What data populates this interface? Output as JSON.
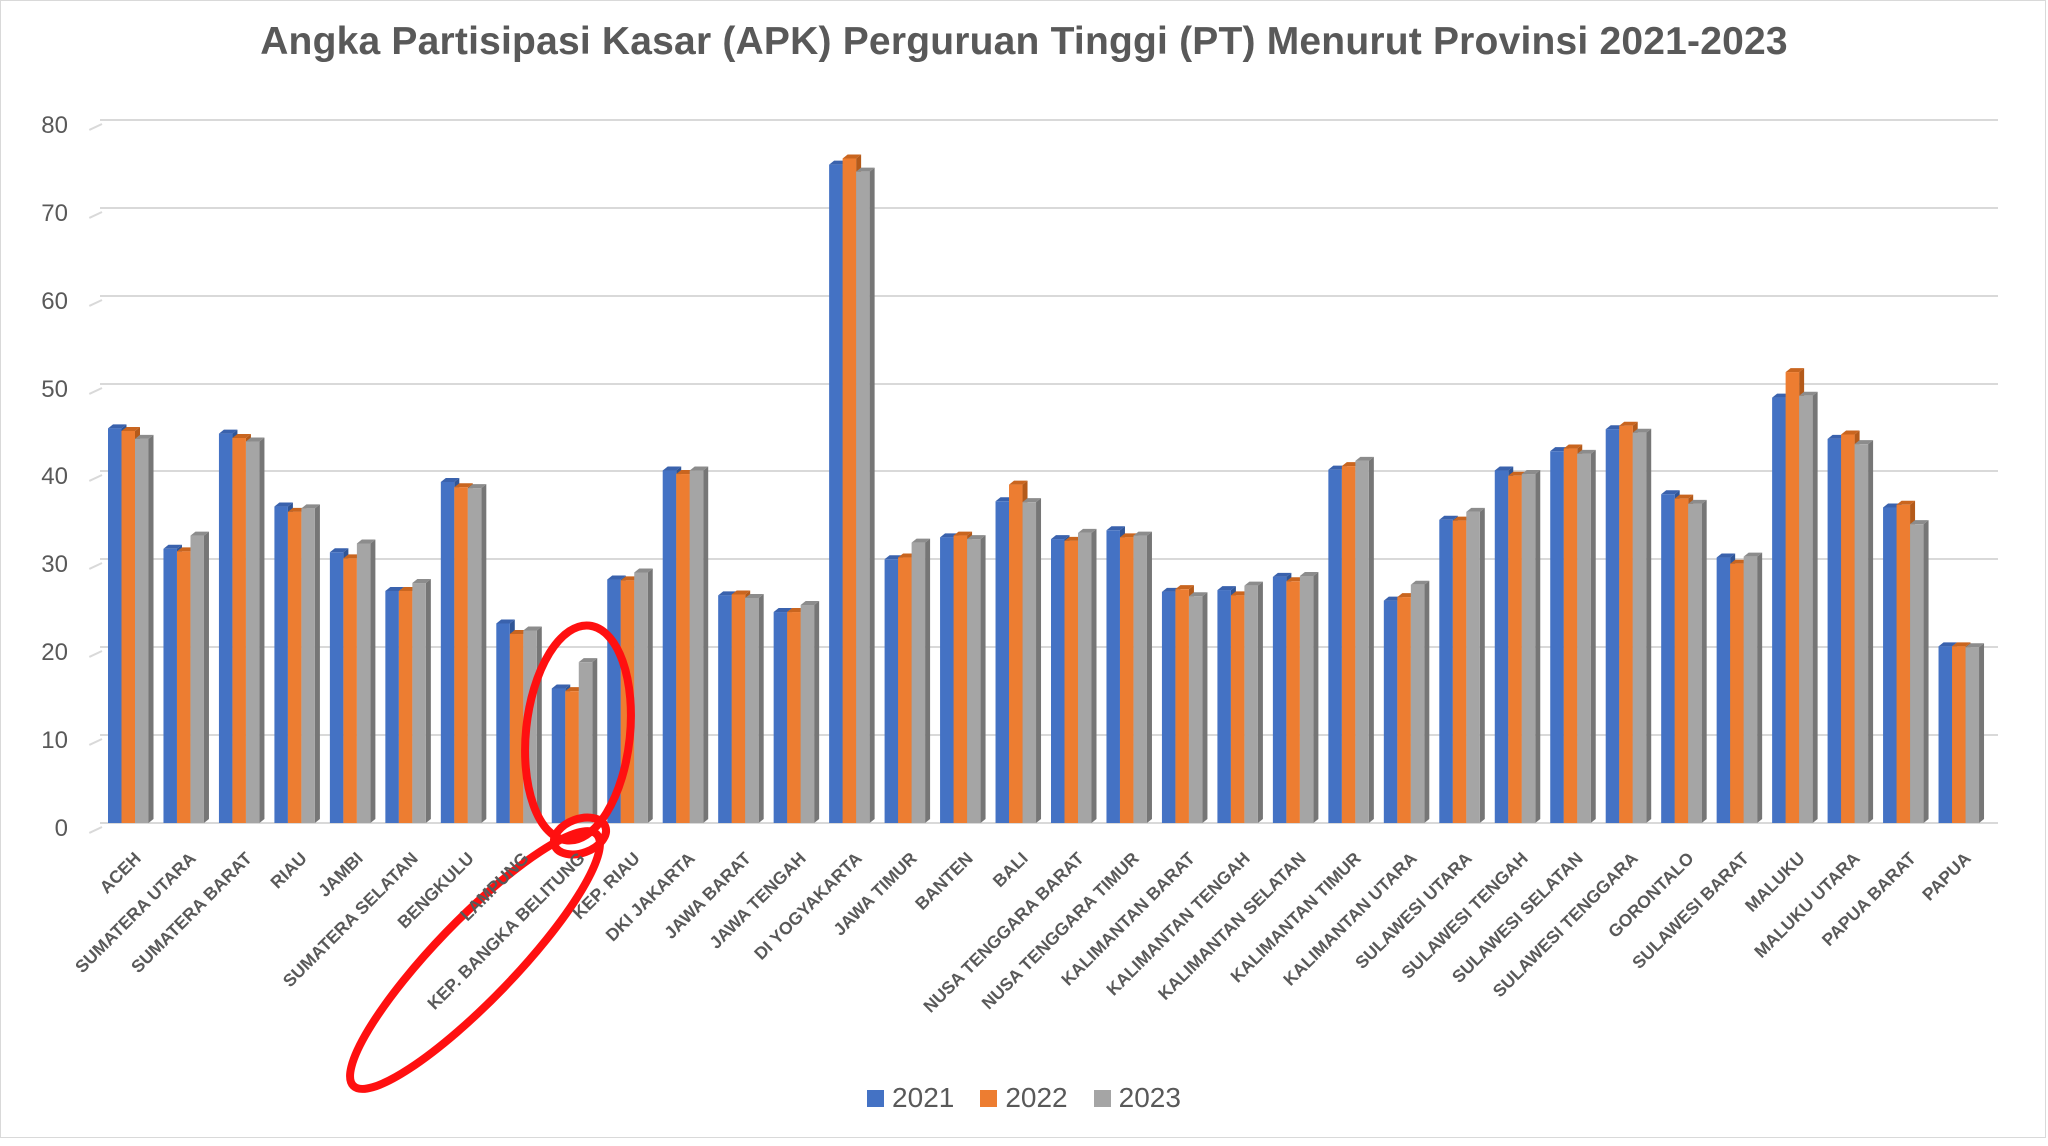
{
  "chart_data": {
    "type": "bar",
    "title": "Angka Partisipasi Kasar (APK) Perguruan Tinggi (PT) Menurut Provinsi 2021-2023",
    "xlabel": "",
    "ylabel": "",
    "ylim": [
      0,
      80
    ],
    "yticks": [
      "0",
      "10",
      "20",
      "30",
      "40",
      "50",
      "60",
      "70",
      "80"
    ],
    "grid": true,
    "legend_position": "bottom",
    "style": "3d-clustered-column",
    "categories": [
      "ACEH",
      "SUMATERA UTARA",
      "SUMATERA BARAT",
      "RIAU",
      "JAMBI",
      "SUMATERA SELATAN",
      "BENGKULU",
      "LAMPUNG",
      "KEP. BANGKA BELITUNG",
      "KEP. RIAU",
      "DKI JAKARTA",
      "JAWA BARAT",
      "JAWA TENGAH",
      "DI YOGYAKARTA",
      "JAWA TIMUR",
      "BANTEN",
      "BALI",
      "NUSA TENGGARA BARAT",
      "NUSA TENGGARA TIMUR",
      "KALIMANTAN BARAT",
      "KALIMANTAN TENGAH",
      "KALIMANTAN SELATAN",
      "KALIMANTAN TIMUR",
      "KALIMANTAN UTARA",
      "SULAWESI UTARA",
      "SULAWESI TENGAH",
      "SULAWESI SELATAN",
      "SULAWESI TENGGARA",
      "GORONTALO",
      "SULAWESI BARAT",
      "MALUKU",
      "MALUKU UTARA",
      "PAPUA BARAT",
      "PAPUA"
    ],
    "series": [
      {
        "name": "2021",
        "color": "#4472c4",
        "values": [
          44.9,
          31.2,
          44.3,
          36.0,
          30.8,
          26.4,
          38.8,
          22.7,
          15.3,
          27.7,
          40.1,
          25.9,
          24.0,
          74.9,
          30.0,
          32.5,
          36.6,
          32.3,
          33.3,
          26.3,
          26.5,
          28.0,
          40.2,
          25.3,
          34.5,
          40.1,
          42.3,
          44.8,
          37.4,
          30.2,
          48.4,
          43.7,
          35.9,
          20.1
        ]
      },
      {
        "name": "2022",
        "color": "#ed7d31",
        "values": [
          44.6,
          30.9,
          43.8,
          35.4,
          30.1,
          26.4,
          38.2,
          21.5,
          15.0,
          27.6,
          39.7,
          26.0,
          24.0,
          75.6,
          30.2,
          32.7,
          38.5,
          32.1,
          32.5,
          26.6,
          25.9,
          27.5,
          40.6,
          25.7,
          34.4,
          39.5,
          42.6,
          45.2,
          36.9,
          29.5,
          51.3,
          44.2,
          36.2,
          20.1
        ]
      },
      {
        "name": "2023",
        "color": "#a5a5a5",
        "values": [
          43.7,
          32.7,
          43.4,
          35.8,
          31.8,
          27.3,
          38.1,
          21.9,
          18.3,
          28.5,
          40.1,
          25.6,
          24.8,
          74.1,
          31.9,
          32.3,
          36.5,
          33.0,
          32.7,
          25.8,
          27.0,
          28.1,
          41.2,
          27.1,
          35.4,
          39.7,
          42.0,
          44.4,
          36.3,
          30.3,
          48.6,
          43.1,
          34.0,
          20.0
        ]
      }
    ],
    "annotations": [
      {
        "type": "hand-drawn-ellipse",
        "color": "#ff0000",
        "target": "KEP. BANGKA BELITUNG bars"
      },
      {
        "type": "hand-drawn-ellipse",
        "color": "#ff0000",
        "target": "KEP. BANGKA BELITUNG label"
      }
    ]
  },
  "legend": {
    "items": [
      {
        "label": "2021",
        "color": "#4472c4"
      },
      {
        "label": "2022",
        "color": "#ed7d31"
      },
      {
        "label": "2023",
        "color": "#a5a5a5"
      }
    ]
  }
}
